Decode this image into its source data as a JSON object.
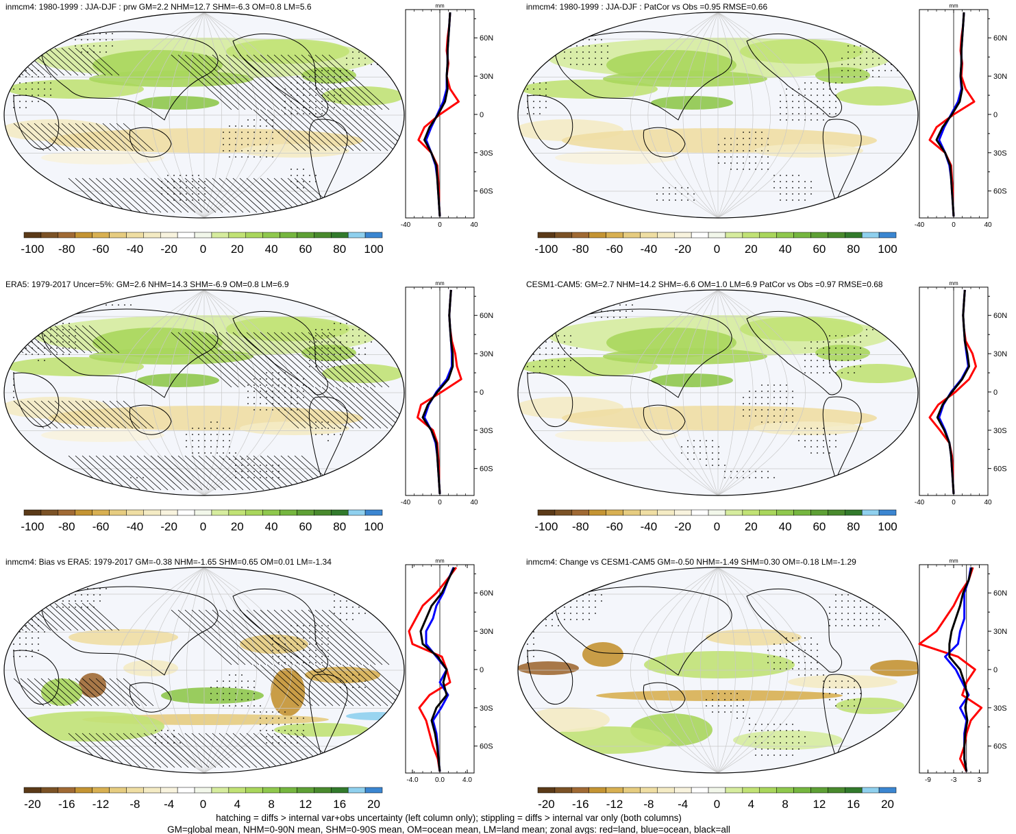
{
  "colors": {
    "land": "#ff0000",
    "ocean": "#0000ff",
    "all": "#000000",
    "levels": [
      "#5b3a18",
      "#7b5226",
      "#a06a34",
      "#c49433",
      "#d8b052",
      "#e6cc80",
      "#efdea3",
      "#f4ebc4",
      "#f8f3de",
      "#ffffff",
      "#f2f7ea",
      "#d6ec9e",
      "#c1e275",
      "#a9d65c",
      "#8fc84d",
      "#75b63f",
      "#5ea035",
      "#498a2d",
      "#327a2c",
      "#8fd0ee",
      "#3b86d1"
    ]
  },
  "panels": [
    {
      "title": "inmcm4: 1980-1999 : JJA-DJF : prw GM=2.2 NHM=12.7 SHM=-6.3 OM=0.8 LM=5.6",
      "colorbar_labels": [
        "-100",
        "-80",
        "-60",
        "-40",
        "-20",
        "0",
        "20",
        "40",
        "60",
        "80",
        "100"
      ],
      "zonal_ticks": [
        "-40",
        "0",
        "40"
      ],
      "zonal_xlim": [
        -40,
        40
      ]
    },
    {
      "title": "inmcm4: 1980-1999 : JJA-DJF : PatCor vs Obs =0.95 RMSE=0.66",
      "colorbar_labels": [
        "-100",
        "-80",
        "-60",
        "-40",
        "-20",
        "0",
        "20",
        "40",
        "60",
        "80",
        "100"
      ],
      "zonal_ticks": [
        "-40",
        "0",
        "40"
      ],
      "zonal_xlim": [
        -40,
        40
      ]
    },
    {
      "title": "ERA5: 1979-2017 Uncer=5%: GM=2.6 NHM=14.3 SHM=-6.9 OM=0.8 LM=6.9",
      "colorbar_labels": [
        "-100",
        "-80",
        "-60",
        "-40",
        "-20",
        "0",
        "20",
        "40",
        "60",
        "80",
        "100"
      ],
      "zonal_ticks": [
        "-40",
        "0",
        "40"
      ],
      "zonal_xlim": [
        -40,
        40
      ]
    },
    {
      "title": "CESM1-CAM5: GM=2.7 NHM=14.2 SHM=-6.6 OM=1.0 LM=6.9 PatCor vs Obs =0.97 RMSE=0.68",
      "colorbar_labels": [
        "-100",
        "-80",
        "-60",
        "-40",
        "-20",
        "0",
        "20",
        "40",
        "60",
        "80",
        "100"
      ],
      "zonal_ticks": [
        "-40",
        "0",
        "40"
      ],
      "zonal_xlim": [
        -40,
        40
      ]
    },
    {
      "title": "inmcm4: Bias vs ERA5: 1979-2017 GM=-0.38 NHM=-1.65 SHM=0.65 OM=0.01 LM=-1.34",
      "colorbar_labels": [
        "-20",
        "-16",
        "-12",
        "-8",
        "-4",
        "0",
        "4",
        "8",
        "12",
        "16",
        "20"
      ],
      "zonal_ticks": [
        "-4.0",
        "0.0",
        "4.0"
      ],
      "zonal_xlim": [
        -5,
        5
      ]
    },
    {
      "title": "inmcm4: Change vs CESM1-CAM5 GM=-0.50 NHM=-1.49 SHM=0.30 OM=-0.18 LM=-1.29",
      "colorbar_labels": [
        "-20",
        "-16",
        "-12",
        "-8",
        "-4",
        "0",
        "4",
        "8",
        "12",
        "16",
        "20"
      ],
      "zonal_ticks": [
        "-9",
        "-3",
        "3"
      ],
      "zonal_xlim": [
        -11,
        5
      ]
    }
  ],
  "zonal_common": {
    "unit": "mm",
    "lat_ticks": [
      "60N",
      "30N",
      "0",
      "30S",
      "60S"
    ]
  },
  "chart_data": [
    {
      "type": "line",
      "title": "inmcm4: 1980-1999 : JJA-DJF : prw GM=2.2 NHM=12.7 SHM=-6.3 OM=0.8 LM=5.6",
      "xlabel": "mm",
      "xlim": [
        -40,
        40
      ],
      "lat": [
        80,
        70,
        60,
        50,
        40,
        30,
        20,
        10,
        0,
        -10,
        -20,
        -30,
        -40,
        -50,
        -60,
        -70,
        -80
      ],
      "series": [
        {
          "name": "land",
          "values": [
            12,
            11,
            9,
            8,
            10,
            8,
            12,
            22,
            0,
            -18,
            -25,
            -10,
            -3,
            -2,
            -1,
            -1,
            0
          ]
        },
        {
          "name": "ocean",
          "values": [
            12,
            11,
            10,
            9,
            9,
            8,
            8,
            4,
            -3,
            -10,
            -16,
            -10,
            -5,
            -3,
            -2,
            -1,
            0
          ]
        },
        {
          "name": "all",
          "values": [
            12,
            11,
            10,
            9,
            9,
            8,
            9,
            6,
            -2,
            -12,
            -18,
            -10,
            -4,
            -3,
            -2,
            -1,
            0
          ]
        }
      ]
    },
    {
      "type": "line",
      "title": "inmcm4: 1980-1999 : JJA-DJF : PatCor vs Obs =0.95 RMSE=0.66",
      "xlabel": "mm",
      "xlim": [
        -40,
        40
      ],
      "lat": [
        80,
        70,
        60,
        50,
        40,
        30,
        20,
        10,
        0,
        -10,
        -20,
        -30,
        -40,
        -50,
        -60,
        -70,
        -80
      ],
      "series": [
        {
          "name": "land",
          "values": [
            12,
            11,
            9,
            8,
            10,
            9,
            14,
            24,
            0,
            -20,
            -28,
            -10,
            -3,
            -2,
            -1,
            -1,
            0
          ]
        },
        {
          "name": "ocean",
          "values": [
            12,
            11,
            10,
            9,
            9,
            8,
            9,
            5,
            -3,
            -11,
            -17,
            -10,
            -5,
            -3,
            -2,
            -1,
            0
          ]
        },
        {
          "name": "all",
          "values": [
            12,
            11,
            10,
            9,
            9,
            8,
            10,
            7,
            -2,
            -13,
            -20,
            -10,
            -4,
            -3,
            -2,
            -1,
            0
          ]
        }
      ]
    },
    {
      "type": "line",
      "title": "ERA5: 1979-2017 Uncer=5%: GM=2.6 NHM=14.3 SHM=-6.9 OM=0.8 LM=6.9",
      "xlabel": "mm",
      "xlim": [
        -40,
        40
      ],
      "lat": [
        80,
        70,
        60,
        50,
        40,
        30,
        20,
        10,
        0,
        -10,
        -20,
        -30,
        -40,
        -50,
        -60,
        -70,
        -80
      ],
      "series": [
        {
          "name": "land",
          "values": [
            13,
            12,
            11,
            12,
            14,
            18,
            20,
            25,
            2,
            -22,
            -26,
            -8,
            -3,
            -2,
            -1,
            -1,
            0
          ]
        },
        {
          "name": "ocean",
          "values": [
            13,
            12,
            11,
            12,
            13,
            14,
            14,
            8,
            -4,
            -13,
            -18,
            -10,
            -5,
            -3,
            -2,
            -1,
            0
          ]
        },
        {
          "name": "all",
          "values": [
            13,
            12,
            11,
            12,
            13,
            15,
            15,
            10,
            -3,
            -14,
            -20,
            -10,
            -4,
            -3,
            -2,
            -1,
            0
          ]
        }
      ]
    },
    {
      "type": "line",
      "title": "CESM1-CAM5: GM=2.7 NHM=14.2 SHM=-6.6 OM=1.0 LM=6.9 PatCor vs Obs =0.97 RMSE=0.68",
      "xlabel": "mm",
      "xlim": [
        -40,
        40
      ],
      "lat": [
        80,
        70,
        60,
        50,
        40,
        30,
        20,
        10,
        0,
        -10,
        -20,
        -30,
        -40,
        -50,
        -60,
        -70,
        -80
      ],
      "series": [
        {
          "name": "land",
          "values": [
            13,
            12,
            11,
            12,
            14,
            22,
            26,
            18,
            2,
            -18,
            -28,
            -16,
            -5,
            -2,
            -1,
            -1,
            0
          ]
        },
        {
          "name": "ocean",
          "values": [
            13,
            12,
            11,
            12,
            13,
            15,
            17,
            9,
            -3,
            -12,
            -17,
            -10,
            -5,
            -3,
            -2,
            -1,
            0
          ]
        },
        {
          "name": "all",
          "values": [
            13,
            12,
            11,
            12,
            13,
            16,
            18,
            10,
            -2,
            -13,
            -19,
            -11,
            -5,
            -3,
            -2,
            -1,
            0
          ]
        }
      ]
    },
    {
      "type": "line",
      "title": "inmcm4: Bias vs ERA5: 1979-2017 GM=-0.38 NHM=-1.65 SHM=0.65 OM=0.01 LM=-1.34",
      "xlabel": "mm",
      "xlim": [
        -5,
        5
      ],
      "lat": [
        80,
        70,
        60,
        50,
        40,
        30,
        20,
        10,
        0,
        -10,
        -20,
        -30,
        -40,
        -50,
        -60,
        -70,
        -80
      ],
      "series": [
        {
          "name": "land",
          "values": [
            2.4,
            1.0,
            -0.5,
            -2.5,
            -3.5,
            -4.5,
            -4.0,
            0.3,
            1.0,
            1.5,
            -1.5,
            -3.0,
            -2.0,
            -1.5,
            -1.0,
            -0.3,
            0.0
          ]
        },
        {
          "name": "ocean",
          "values": [
            2.0,
            1.2,
            0.5,
            -0.5,
            -1.0,
            -2.0,
            -2.0,
            -0.5,
            1.0,
            0.0,
            1.2,
            0.2,
            -1.0,
            -0.5,
            -0.3,
            -0.2,
            0.0
          ]
        },
        {
          "name": "all",
          "values": [
            2.1,
            1.2,
            0.3,
            -1.2,
            -2.0,
            -2.8,
            -2.5,
            -0.3,
            1.0,
            0.5,
            1.0,
            -0.5,
            -1.2,
            -0.7,
            -0.4,
            -0.2,
            0.0
          ]
        }
      ]
    },
    {
      "type": "line",
      "title": "inmcm4: Change vs CESM1-CAM5 GM=-0.50 NHM=-1.49 SHM=0.30 OM=-0.18 LM=-1.29",
      "xlabel": "mm",
      "xlim": [
        -11,
        5
      ],
      "lat": [
        80,
        70,
        60,
        50,
        40,
        30,
        20,
        10,
        0,
        -10,
        -20,
        -30,
        -40,
        -50,
        -60,
        -70,
        -80
      ],
      "series": [
        {
          "name": "land",
          "values": [
            1.5,
            0.5,
            -1.5,
            -3.0,
            -5.0,
            -7.0,
            -11.0,
            -2.0,
            2.0,
            0.0,
            -1.0,
            3.5,
            1.0,
            0.0,
            -0.5,
            -1.5,
            0.0
          ]
        },
        {
          "name": "ocean",
          "values": [
            1.0,
            0.5,
            -0.5,
            -0.5,
            -0.5,
            -1.5,
            -2.0,
            -5.0,
            -2.5,
            -1.0,
            0.5,
            -1.5,
            0.0,
            -0.5,
            -0.5,
            -0.5,
            0.0
          ]
        },
        {
          "name": "all",
          "values": [
            1.2,
            0.5,
            -0.8,
            -1.5,
            -2.5,
            -3.5,
            -4.0,
            -4.0,
            -1.5,
            -0.5,
            0.2,
            -0.3,
            0.2,
            -0.3,
            -0.5,
            -0.5,
            0.0
          ]
        }
      ]
    }
  ],
  "footer": {
    "line1": "hatching = diffs > internal var+obs uncertainty (left column only); stippling = diffs > internal var only (both columns)",
    "line2": "GM=global mean, NHM=0-90N mean, SHM=0-90S mean, OM=ocean mean, LM=land mean; zonal avgs: red=land, blue=ocean, black=all"
  }
}
